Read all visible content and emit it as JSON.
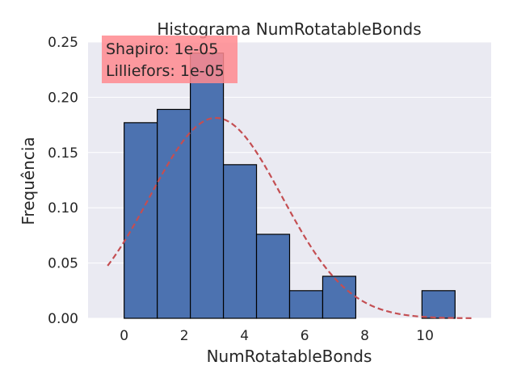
{
  "chart_data": {
    "type": "bar",
    "title": "Histograma NumRotatableBonds",
    "xlabel": "NumRotatableBonds",
    "ylabel": "Frequência",
    "xlim": [
      -1.2,
      12.2
    ],
    "ylim": [
      0,
      0.25
    ],
    "xticks": [
      0,
      2,
      4,
      6,
      8,
      10
    ],
    "yticks": [
      0.0,
      0.05,
      0.1,
      0.15,
      0.2,
      0.25
    ],
    "xtick_labels": [
      "0",
      "2",
      "4",
      "6",
      "8",
      "10"
    ],
    "ytick_labels": [
      "0.00",
      "0.05",
      "0.10",
      "0.15",
      "0.20",
      "0.25"
    ],
    "grid": true,
    "bins": [
      {
        "x0": 0.0,
        "x1": 1.1,
        "value": 0.177
      },
      {
        "x0": 1.1,
        "x1": 2.2,
        "value": 0.189
      },
      {
        "x0": 2.2,
        "x1": 3.3,
        "value": 0.24
      },
      {
        "x0": 3.3,
        "x1": 4.4,
        "value": 0.139
      },
      {
        "x0": 4.4,
        "x1": 5.5,
        "value": 0.076
      },
      {
        "x0": 5.5,
        "x1": 6.6,
        "value": 0.025
      },
      {
        "x0": 6.6,
        "x1": 7.7,
        "value": 0.038
      },
      {
        "x0": 7.7,
        "x1": 8.8,
        "value": 0.0
      },
      {
        "x0": 8.8,
        "x1": 9.9,
        "value": 0.0
      },
      {
        "x0": 9.9,
        "x1": 11.0,
        "value": 0.025
      }
    ],
    "normal_fit": {
      "mean": 3.05,
      "std": 2.2,
      "x_range": [
        -0.55,
        11.55
      ],
      "style": "dashed"
    },
    "annotation": {
      "lines": [
        "Shapiro: 1e-05",
        "Lilliefors: 1e-05"
      ]
    },
    "colors": {
      "bar_fill": "#4c72b0",
      "bar_edge": "#000000",
      "fit_line": "#c44e52",
      "plot_bg": "#eaeaf2",
      "grid": "#ffffff",
      "annotation_bg": "#ff8a8f"
    }
  }
}
